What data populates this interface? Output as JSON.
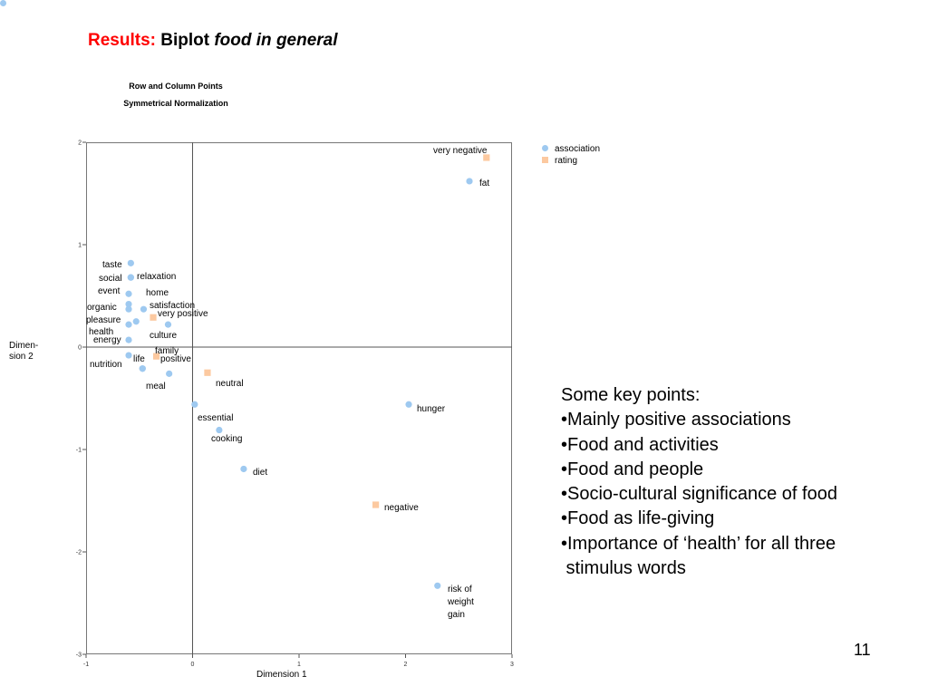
{
  "slide": {
    "title_prefix": "Results:",
    "title_main": "Biplot",
    "title_italic": "food in general",
    "page_number": "11"
  },
  "key_points": {
    "heading": "Some key points:",
    "items": [
      "•Mainly positive associations",
      "•Food and activities",
      "•Food and people",
      "•Socio-cultural significance of food",
      "•Food as life-giving",
      "•Importance of ‘health’ for all three",
      " stimulus words"
    ]
  },
  "colors": {
    "association": "#9ec9f0",
    "rating": "#fcc9a0",
    "axis": "#555555",
    "title_red": "#ff0000"
  },
  "chart_data": {
    "type": "scatter",
    "title": "Row and Column Points",
    "subtitle": "Symmetrical Normalization",
    "xlabel": "Dimension 1",
    "ylabel": "Dimen- sion 2",
    "xlim": [
      -1,
      3
    ],
    "ylim": [
      -3,
      2
    ],
    "x_ticks": [
      "-1",
      "0",
      "1",
      "2",
      "3"
    ],
    "y_ticks": [
      "2",
      "1",
      "0",
      "-1",
      "-2",
      "-3"
    ],
    "grid": false,
    "legend_position": "top-right-outside",
    "series": [
      {
        "name": "association",
        "marker": "circle",
        "points": [
          {
            "label": "fat",
            "x": 2.6,
            "y": 1.62
          },
          {
            "label": "taste",
            "x": -0.58,
            "y": 0.82
          },
          {
            "label": "social",
            "x": -0.58,
            "y": 0.68
          },
          {
            "label": "relaxation",
            "x": -0.58,
            "y": 0.68
          },
          {
            "label": "event",
            "x": -0.6,
            "y": 0.52
          },
          {
            "label": "home",
            "x": -0.6,
            "y": 0.42
          },
          {
            "label": "organic",
            "x": -0.6,
            "y": 0.37
          },
          {
            "label": "satisfaction",
            "x": -0.46,
            "y": 0.37
          },
          {
            "label": "pleasure",
            "x": -0.53,
            "y": 0.25
          },
          {
            "label": "health",
            "x": -0.6,
            "y": 0.22
          },
          {
            "label": "culture",
            "x": -0.23,
            "y": 0.22
          },
          {
            "label": "energy",
            "x": -0.6,
            "y": 0.07
          },
          {
            "label": "family",
            "x": -0.6,
            "y": -0.08
          },
          {
            "label": "nutrition",
            "x": -0.47,
            "y": -0.21
          },
          {
            "label": "life",
            "x": -0.47,
            "y": -0.21
          },
          {
            "label": "meal",
            "x": -0.22,
            "y": -0.26
          },
          {
            "label": "essential",
            "x": 0.02,
            "y": -0.56
          },
          {
            "label": "cooking",
            "x": 0.25,
            "y": -0.81
          },
          {
            "label": "hunger",
            "x": 2.03,
            "y": -0.56
          },
          {
            "label": "diet",
            "x": 0.48,
            "y": -1.19
          },
          {
            "label": "risk of weight gain",
            "x": 2.3,
            "y": -2.33
          }
        ]
      },
      {
        "name": "rating",
        "marker": "square",
        "points": [
          {
            "label": "very negative",
            "x": 2.76,
            "y": 1.85
          },
          {
            "label": "very positive",
            "x": -0.37,
            "y": 0.29
          },
          {
            "label": "positive",
            "x": -0.34,
            "y": -0.09
          },
          {
            "label": "neutral",
            "x": 0.14,
            "y": -0.25
          },
          {
            "label": "negative",
            "x": 1.72,
            "y": -1.54
          }
        ]
      }
    ],
    "point_labels": [
      {
        "text": "very negative"
      },
      {
        "text": "fat"
      },
      {
        "text": "taste"
      },
      {
        "text": "social"
      },
      {
        "text": "relaxation"
      },
      {
        "text": "event"
      },
      {
        "text": "home"
      },
      {
        "text": "organic"
      },
      {
        "text": "satisfaction"
      },
      {
        "text": "very positive"
      },
      {
        "text": "pleasure"
      },
      {
        "text": "health"
      },
      {
        "text": "culture"
      },
      {
        "text": "energy"
      },
      {
        "text": "family"
      },
      {
        "text": "life"
      },
      {
        "text": "positive"
      },
      {
        "text": "nutrition"
      },
      {
        "text": "neutral"
      },
      {
        "text": "meal"
      },
      {
        "text": "hunger"
      },
      {
        "text": "essential"
      },
      {
        "text": "cooking"
      },
      {
        "text": "diet"
      },
      {
        "text": "negative"
      },
      {
        "text": "risk of"
      },
      {
        "text": "weight"
      },
      {
        "text": "gain"
      }
    ]
  }
}
